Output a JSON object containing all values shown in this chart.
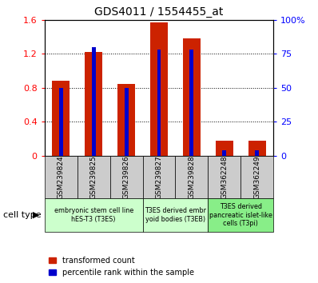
{
  "title": "GDS4011 / 1554455_at",
  "samples": [
    "GSM239824",
    "GSM239825",
    "GSM239826",
    "GSM239827",
    "GSM239828",
    "GSM362248",
    "GSM362249"
  ],
  "transformed_count": [
    0.88,
    1.22,
    0.84,
    1.57,
    1.38,
    0.18,
    0.18
  ],
  "percentile_rank_pct": [
    50,
    80,
    50,
    78,
    78,
    4,
    4
  ],
  "ylim_left": [
    0,
    1.6
  ],
  "ylim_right": [
    0,
    100
  ],
  "yticks_left": [
    0,
    0.4,
    0.8,
    1.2,
    1.6
  ],
  "ytick_labels_left": [
    "0",
    "0.4",
    "0.8",
    "1.2",
    "1.6"
  ],
  "yticks_right": [
    0,
    25,
    50,
    75,
    100
  ],
  "ytick_labels_right": [
    "0",
    "25",
    "50",
    "75",
    "100%"
  ],
  "bar_color_red": "#cc2200",
  "bar_color_blue": "#0000cc",
  "group_configs": [
    {
      "samples": [
        0,
        1,
        2
      ],
      "label": "embryonic stem cell line\nhES-T3 (T3ES)",
      "color": "#ccffcc"
    },
    {
      "samples": [
        3,
        4
      ],
      "label": "T3ES derived embr\nyoid bodies (T3EB)",
      "color": "#ccffcc"
    },
    {
      "samples": [
        5,
        6
      ],
      "label": "T3ES derived\npancreatic islet-like\ncells (T3pi)",
      "color": "#88ee88"
    }
  ],
  "cell_type_label": "cell type",
  "legend_red": "transformed count",
  "legend_blue": "percentile rank within the sample",
  "sample_bg_color": "#cccccc"
}
